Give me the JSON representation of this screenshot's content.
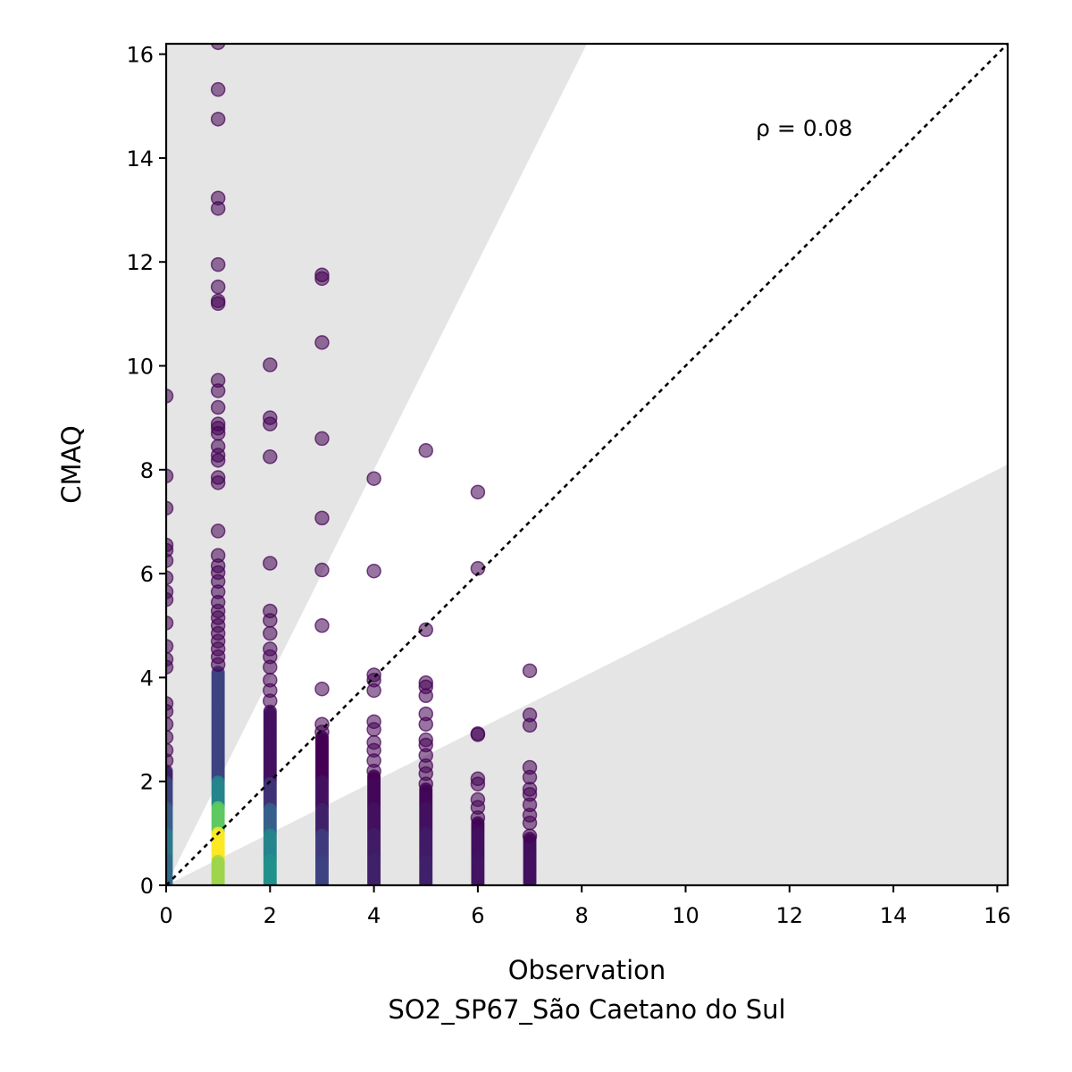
{
  "chart_data": {
    "type": "scatter",
    "xlabel": "Observation",
    "xlabel_sub": "SO2_SP67_São Caetano do Sul",
    "ylabel": "CMAQ",
    "xlim": [
      0,
      16.2
    ],
    "ylim": [
      0,
      16.2
    ],
    "xticks": [
      0,
      2,
      4,
      6,
      8,
      10,
      12,
      14,
      16
    ],
    "yticks": [
      0,
      2,
      4,
      6,
      8,
      10,
      12,
      14,
      16
    ],
    "annotation": "ρ = 0.08",
    "reference_line": "1:1",
    "shaded_bands": [
      "above factor-of-2 (y > 2x)",
      "below factor-of-2 (y < 0.5x)"
    ],
    "band_color": "#e5e5e5",
    "colormap": "viridis",
    "point_alpha": 0.55,
    "groups": [
      {
        "x": 0,
        "outliers": [
          9.42,
          7.88,
          7.26,
          6.55,
          6.45,
          6.25,
          5.92,
          5.65,
          5.5,
          5.05,
          4.6,
          4.35,
          4.2,
          3.5,
          3.35,
          3.1,
          2.85,
          2.6,
          2.4
        ],
        "dense_top": 2.2,
        "density": [
          0.35,
          0.4,
          0.3,
          0.2,
          0.1
        ]
      },
      {
        "x": 1,
        "outliers": [
          16.22,
          15.32,
          14.75,
          13.23,
          13.03,
          11.95,
          11.52,
          11.25,
          11.2,
          9.72,
          9.52,
          9.2,
          8.88,
          8.8,
          8.7,
          8.45,
          8.28,
          8.18,
          7.85,
          7.75,
          6.82,
          6.35,
          6.15,
          6.02,
          5.85,
          5.65,
          5.45,
          5.28,
          5.15,
          5.0,
          4.85,
          4.7,
          4.55,
          4.4,
          4.25
        ],
        "dense_top": 4.1,
        "density": [
          0.85,
          1.0,
          0.75,
          0.45,
          0.2
        ]
      },
      {
        "x": 2,
        "outliers": [
          10.02,
          9.0,
          8.88,
          8.25,
          6.2,
          5.28,
          5.1,
          4.85,
          4.55,
          4.4,
          4.2,
          3.95,
          3.75,
          3.55
        ],
        "dense_top": 3.35,
        "density": [
          0.5,
          0.45,
          0.3,
          0.15,
          0.05
        ]
      },
      {
        "x": 3,
        "outliers": [
          11.75,
          11.68,
          10.45,
          8.6,
          7.07,
          6.07,
          5.0,
          3.78,
          3.1,
          2.95
        ],
        "dense_top": 2.85,
        "density": [
          0.2,
          0.18,
          0.1,
          0.05,
          0.0
        ]
      },
      {
        "x": 4,
        "outliers": [
          7.83,
          6.05,
          4.05,
          3.95,
          3.75,
          3.15,
          3.0,
          2.75,
          2.6,
          2.4,
          2.2
        ],
        "dense_top": 2.1,
        "density": [
          0.1,
          0.08,
          0.05,
          0.02,
          0.0
        ]
      },
      {
        "x": 5,
        "outliers": [
          8.37,
          4.92,
          3.9,
          3.82,
          3.65,
          3.3,
          3.1,
          2.8,
          2.7,
          2.5,
          2.3,
          2.15,
          1.95
        ],
        "dense_top": 1.85,
        "density": [
          0.1,
          0.08,
          0.05,
          0.02,
          0.0
        ]
      },
      {
        "x": 6,
        "outliers": [
          7.57,
          6.1,
          2.92,
          2.9,
          2.05,
          1.95,
          1.65,
          1.5,
          1.3
        ],
        "dense_top": 1.2,
        "density": [
          0.06,
          0.05,
          0.03,
          0.01,
          0.0
        ]
      },
      {
        "x": 7,
        "outliers": [
          4.13,
          3.28,
          3.08,
          2.27,
          2.08,
          1.85,
          1.75,
          1.55,
          1.35,
          1.2,
          0.95
        ],
        "dense_top": 0.9,
        "density": [
          0.05,
          0.04,
          0.02,
          0.0,
          0.0
        ]
      }
    ]
  }
}
